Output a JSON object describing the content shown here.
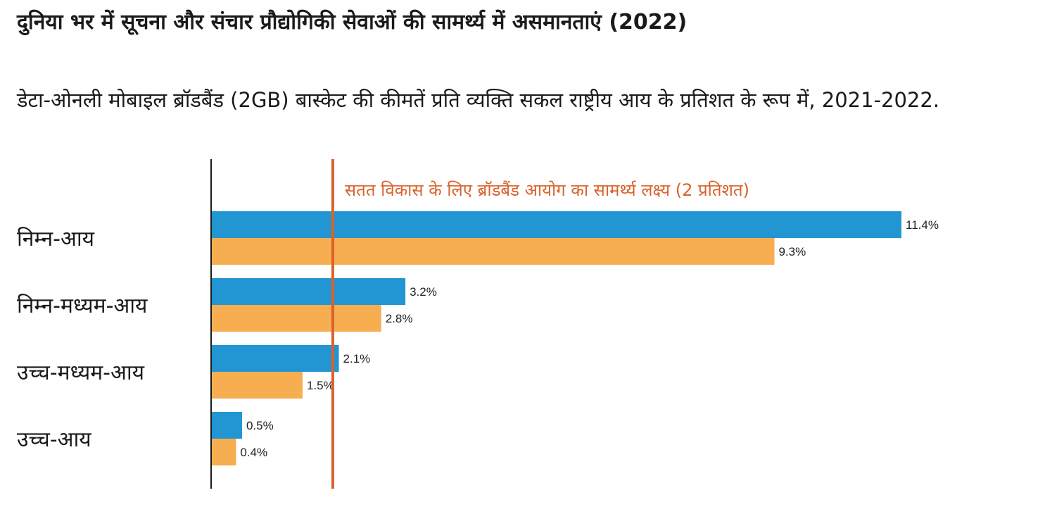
{
  "header": {
    "title": "दुनिया भर में सूचना और संचार प्रौद्योगिकी सेवाओं की सामर्थ्य में असमानताएं (2022)",
    "subtitle": "डेटा-ओनली मोबाइल ब्रॉडबैंड (2GB) बास्केट की कीमतें प्रति व्यक्ति सकल राष्ट्रीय आय के प्रतिशत के रूप में, 2021-2022."
  },
  "chart_data": {
    "type": "bar",
    "orientation": "horizontal",
    "categories": [
      "निम्न-आय",
      "निम्न-मध्यम-आय",
      "उच्च-मध्यम-आय",
      "उच्च-आय"
    ],
    "series": [
      {
        "values": [
          11.4,
          3.2,
          2.1,
          0.5
        ],
        "color": "#2196d3"
      },
      {
        "values": [
          9.3,
          2.8,
          1.5,
          0.4
        ],
        "color": "#f7ae50"
      }
    ],
    "value_labels": [
      [
        "11.4%",
        "3.2%",
        "2.1%",
        "0.5%"
      ],
      [
        "9.3%",
        "2.8%",
        "1.5%",
        "0.4%"
      ]
    ],
    "xlim": [
      0,
      11.4
    ],
    "grid": false,
    "reference_line": {
      "value": 2,
      "label": "सतत विकास के लिए ब्रॉडबैंड आयोग का सामर्थ्य लक्ष्य (2 प्रतिशत)",
      "color": "#d9622b"
    }
  }
}
